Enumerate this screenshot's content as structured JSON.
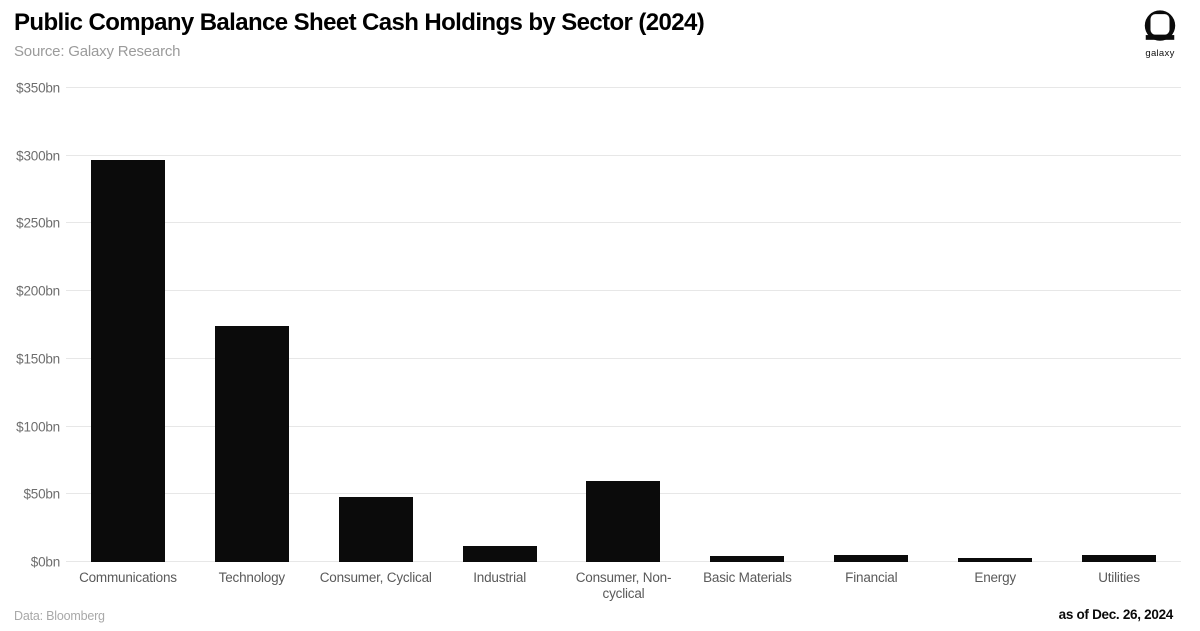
{
  "header": {
    "title": "Public Company Balance Sheet Cash Holdings by Sector (2024)",
    "subtitle": "Source: Galaxy Research",
    "logo_text": "galaxy"
  },
  "chart_data": {
    "type": "bar",
    "title": "Public Company Balance Sheet Cash Holdings by Sector (2024)",
    "subtitle": "Source: Galaxy Research",
    "unit": "USD billions",
    "categories": [
      "Communications",
      "Technology",
      "Consumer, Cyclical",
      "Industrial",
      "Consumer, Non-cyclical",
      "Basic Materials",
      "Financial",
      "Energy",
      "Utilities"
    ],
    "category_slugs": [
      "communications",
      "technology",
      "consumer-cyclical",
      "industrial",
      "consumer-non-cyclical",
      "basic-materials",
      "financial",
      "energy",
      "utilities"
    ],
    "values": [
      297,
      174,
      48,
      12,
      60,
      4.5,
      5.5,
      3,
      5
    ],
    "xlabel": "",
    "ylabel": "",
    "ylim": [
      0,
      350
    ],
    "ytick_step": 50,
    "ytick_labels": [
      "$0bn",
      "$50bn",
      "$100bn",
      "$150bn",
      "$200bn",
      "$250bn",
      "$300bn",
      "$350bn"
    ],
    "grid": "horizontal",
    "legend": "none",
    "bar_color": "#0b0b0b",
    "gridline_color": "#e7e7e7"
  },
  "footer": {
    "left": "Data: Bloomberg",
    "right": "as of Dec. 26, 2024"
  },
  "colors": {
    "background": "#ffffff",
    "title": "#000000",
    "subtitle": "#9b9b9b",
    "axis_labels": "#6e6e6e",
    "bar": "#0b0b0b",
    "gridline": "#e7e7e7"
  }
}
